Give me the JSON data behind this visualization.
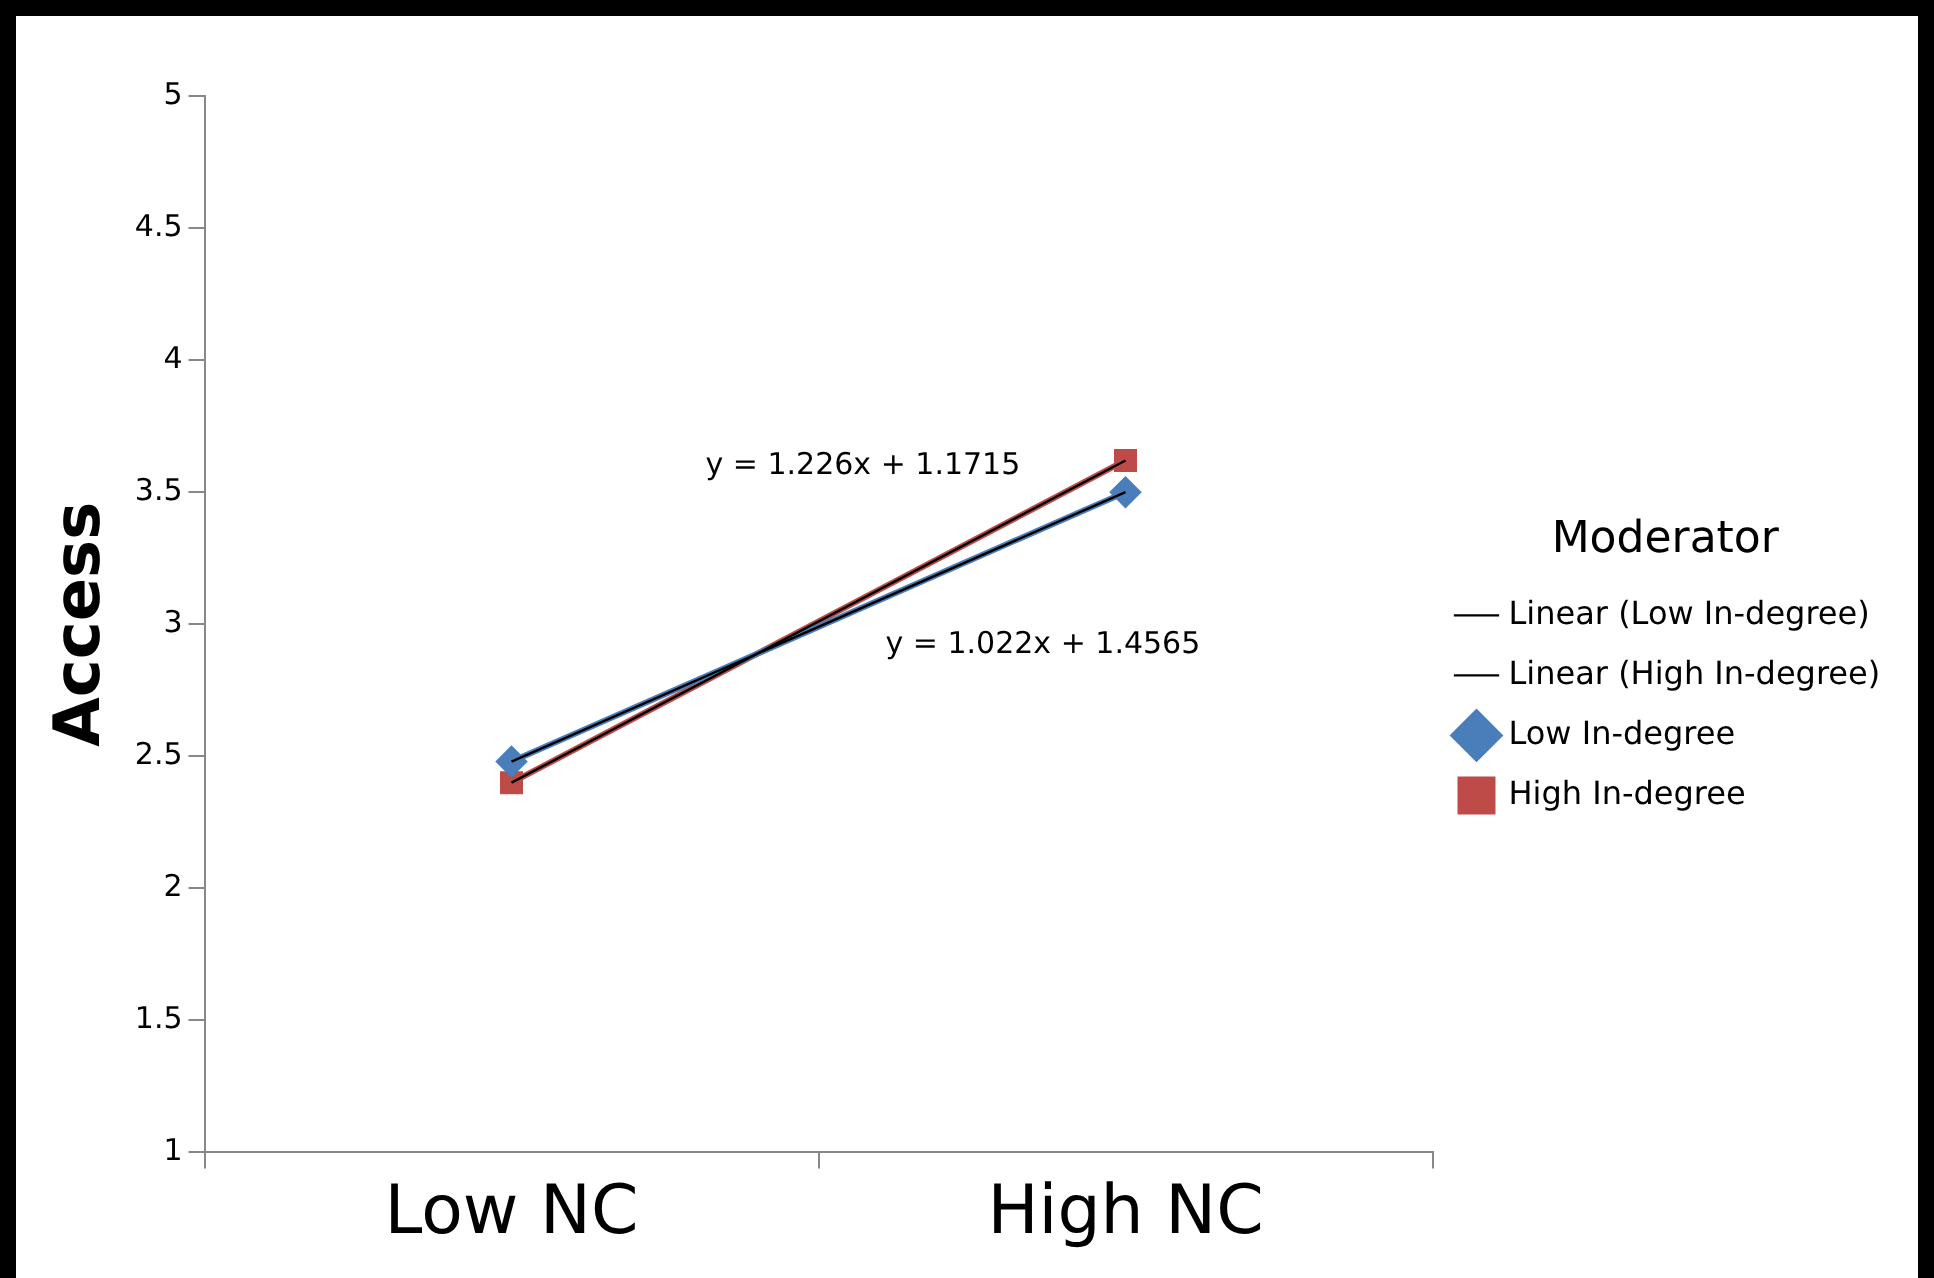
{
  "chart_data": {
    "type": "line",
    "ylabel": "Access",
    "legend_title": "Moderator",
    "legend": "right",
    "categories": [
      "Low NC",
      "High NC"
    ],
    "ylim": [
      1,
      5
    ],
    "yticks": [
      1,
      1.5,
      2,
      2.5,
      3,
      3.5,
      4,
      4.5,
      5
    ],
    "grid": false,
    "series": [
      {
        "name": "Low In-degree",
        "color": "#4a7ebb",
        "values": [
          2.48,
          3.5
        ],
        "marker": "diamond"
      },
      {
        "name": "High In-degree",
        "color": "#be4b48",
        "values": [
          2.4,
          3.62
        ],
        "marker": "square"
      },
      {
        "name": "Linear (Low In-degree)",
        "color": "#000000",
        "values": [
          2.48,
          3.5
        ],
        "marker": "none"
      },
      {
        "name": "Linear (High In-degree)",
        "color": "#000000",
        "values": [
          2.4,
          3.62
        ],
        "marker": "none"
      }
    ],
    "annotations": [
      "y = 1.226x + 1.1715",
      "y = 1.022x + 1.4565"
    ]
  }
}
